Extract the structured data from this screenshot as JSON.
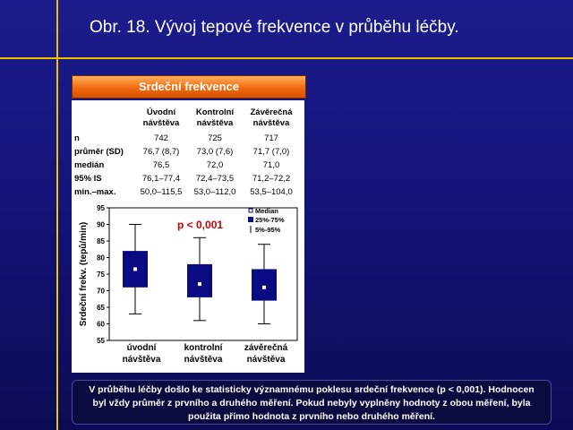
{
  "slide": {
    "title": "Obr. 18. Vývoj tepové frekvence v průběhu léčby."
  },
  "panel": {
    "header": "Srdeční frekvence"
  },
  "stats_table": {
    "columns": [
      {
        "line1": "Úvodní",
        "line2": "návštěva"
      },
      {
        "line1": "Kontrolní",
        "line2": "návštěva"
      },
      {
        "line1": "Závěrečná",
        "line2": "návštěva"
      }
    ],
    "rows": [
      {
        "label": "n",
        "values": [
          "742",
          "725",
          "717"
        ]
      },
      {
        "label": "průměr (SD)",
        "values": [
          "76,7 (8,7)",
          "73,0 (7,6)",
          "71,7 (7,0)"
        ]
      },
      {
        "label": "medián",
        "values": [
          "76,5",
          "72,0",
          "71,0"
        ]
      },
      {
        "label": "95% IS",
        "values": [
          "76,1–77,4",
          "72,4–73,5",
          "71,2–72,2"
        ]
      },
      {
        "label": "min.–max.",
        "values": [
          "50,0–115,5",
          "53,0–112,0",
          "53,5–104,0"
        ]
      }
    ]
  },
  "chart_data": {
    "type": "box",
    "ylabel": "Srdeční frekv. (tepů/min)",
    "ylim": [
      55,
      95
    ],
    "yticks": [
      55,
      60,
      65,
      70,
      75,
      80,
      85,
      90,
      95
    ],
    "categories": [
      {
        "line1": "úvodní",
        "line2": "návštěva"
      },
      {
        "line1": "kontrolní",
        "line2": "návštěva"
      },
      {
        "line1": "závěrečná",
        "line2": "návštěva"
      }
    ],
    "boxes": [
      {
        "whisker_low": 63,
        "q1": 71,
        "median": 76.5,
        "q3": 82,
        "whisker_high": 90
      },
      {
        "whisker_low": 61,
        "q1": 68,
        "median": 72,
        "q3": 78,
        "whisker_high": 86
      },
      {
        "whisker_low": 60,
        "q1": 67,
        "median": 71,
        "q3": 76.5,
        "whisker_high": 84
      }
    ],
    "annotation": "p < 0,001",
    "legend": {
      "position": "top-right",
      "items": [
        "Median",
        "25%-75%",
        "5%-95%"
      ]
    },
    "colors": {
      "box": "#0a0a82",
      "median_marker": "#ffffff",
      "annotation": "#cc0000"
    }
  },
  "note": {
    "text": "V průběhu léčby došlo ke statisticky významnému poklesu srdeční frekvence (p < 0,001). Hodnocen byl vždy průměr z prvního a druhého měření. Pokud nebyly vyplněny hodnoty z obou měření, byla použita přímo hodnota z prvního nebo druhého měření."
  }
}
